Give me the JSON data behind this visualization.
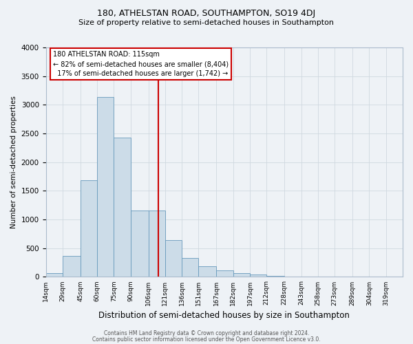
{
  "title": "180, ATHELSTAN ROAD, SOUTHAMPTON, SO19 4DJ",
  "subtitle": "Size of property relative to semi-detached houses in Southampton",
  "xlabel": "Distribution of semi-detached houses by size in Southampton",
  "ylabel": "Number of semi-detached properties",
  "bar_left_edges": [
    14,
    29,
    45,
    60,
    75,
    90,
    106,
    121,
    136,
    151,
    167,
    182,
    197,
    212,
    228,
    243,
    258,
    273,
    289,
    304
  ],
  "bar_widths": [
    15,
    16,
    15,
    15,
    15,
    16,
    15,
    15,
    15,
    16,
    15,
    15,
    15,
    16,
    15,
    15,
    15,
    16,
    15,
    15
  ],
  "bar_heights": [
    70,
    370,
    1690,
    3140,
    2430,
    1160,
    1160,
    640,
    330,
    190,
    110,
    60,
    40,
    15,
    5,
    5,
    3,
    2,
    2,
    1
  ],
  "bar_color": "#ccdce8",
  "bar_edgecolor": "#6699bb",
  "vline_x": 115,
  "vline_color": "#cc0000",
  "annotation_line1": "180 ATHELSTAN ROAD: 115sqm",
  "annotation_line2": "← 82% of semi-detached houses are smaller (8,404)",
  "annotation_line3": "  17% of semi-detached houses are larger (1,742) →",
  "ylim": [
    0,
    4000
  ],
  "xlim": [
    14,
    334
  ],
  "ytick_values": [
    0,
    500,
    1000,
    1500,
    2000,
    2500,
    3000,
    3500,
    4000
  ],
  "xtick_labels": [
    "14sqm",
    "29sqm",
    "45sqm",
    "60sqm",
    "75sqm",
    "90sqm",
    "106sqm",
    "121sqm",
    "136sqm",
    "151sqm",
    "167sqm",
    "182sqm",
    "197sqm",
    "212sqm",
    "228sqm",
    "243sqm",
    "258sqm",
    "273sqm",
    "289sqm",
    "304sqm",
    "319sqm"
  ],
  "xtick_positions": [
    14,
    29,
    45,
    60,
    75,
    90,
    106,
    121,
    136,
    151,
    167,
    182,
    197,
    212,
    228,
    243,
    258,
    273,
    289,
    304,
    319
  ],
  "grid_color": "#d0d8e0",
  "bg_color": "#eef2f6",
  "footnote1": "Contains HM Land Registry data © Crown copyright and database right 2024.",
  "footnote2": "Contains public sector information licensed under the Open Government Licence v3.0."
}
